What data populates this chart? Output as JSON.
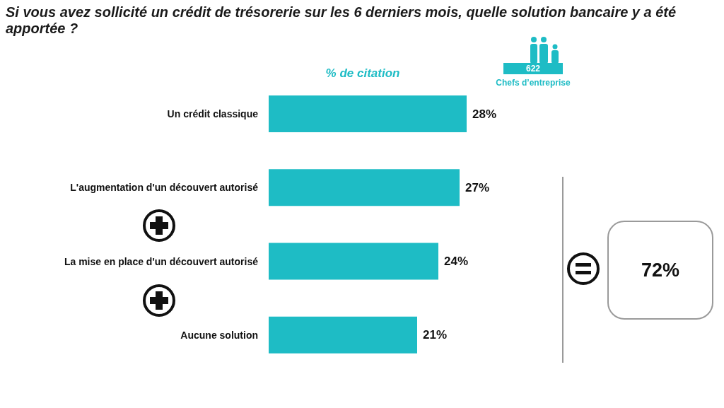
{
  "chart_data": {
    "type": "bar",
    "orientation": "horizontal",
    "title": "Si vous avez sollicité un crédit de trésorerie sur les 6 derniers mois, quelle solution bancaire y a été apportée ?",
    "subtitle": "% de citation",
    "categories": [
      "Un crédit classique",
      "L'augmentation d'un découvert autorisé",
      "La mise en place d'un découvert autorisé",
      "Aucune solution"
    ],
    "values": [
      28,
      27,
      24,
      21
    ],
    "value_labels": [
      "28%",
      "27%",
      "24%",
      "21%"
    ],
    "color": "#1ebcc5",
    "annotations": [
      "622",
      "Chefs d’entreprise",
      "72%"
    ]
  }
}
